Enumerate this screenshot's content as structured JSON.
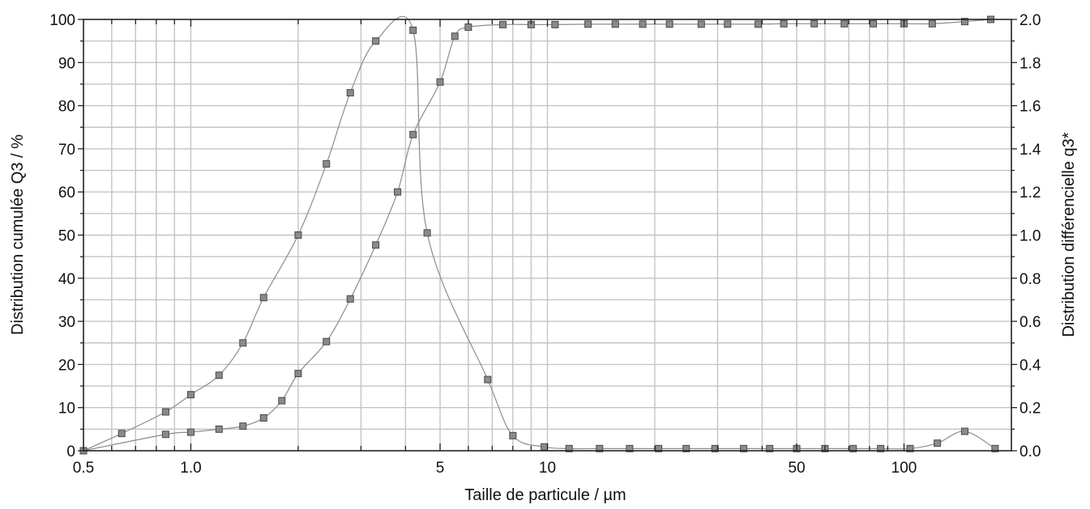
{
  "chart_data": {
    "type": "scatter",
    "title": "",
    "xlabel": "Taille de particule / µm",
    "ylabel": "Distribution cumulée Q3 / %",
    "y2label": "Distribution différencielle q3*",
    "x_scale": "log",
    "xlim": [
      0.5,
      200
    ],
    "ylim": [
      0,
      100
    ],
    "y2lim": [
      0,
      2.0
    ],
    "x_ticks": [
      0.5,
      1.0,
      5,
      10,
      50,
      100
    ],
    "x_tick_labels": [
      "0.5",
      "1.0",
      "5",
      "10",
      "50",
      "100"
    ],
    "y_ticks": [
      0,
      10,
      20,
      30,
      40,
      50,
      60,
      70,
      80,
      90,
      100
    ],
    "y_tick_labels": [
      "0",
      "10",
      "20",
      "30",
      "40",
      "50",
      "60",
      "70",
      "80",
      "90",
      "100"
    ],
    "y2_ticks": [
      0,
      0.2,
      0.4,
      0.6,
      0.8,
      1.0,
      1.2,
      1.4,
      1.6,
      1.8,
      2.0
    ],
    "y2_tick_labels": [
      "0.0",
      "0.2",
      "0.4",
      "0.6",
      "0.8",
      "1.0",
      "1.2",
      "1.4",
      "1.6",
      "1.8",
      "2.0"
    ],
    "grid": true,
    "legend": "none",
    "colors": {
      "curve": "#8c8c8c",
      "marker_fill": "#8a8a8a",
      "marker_stroke": "#4a4a4a",
      "grid": "#c4c4c4",
      "axis": "#222222"
    },
    "series": [
      {
        "axis": "right",
        "x": [
          0.5,
          0.64,
          0.85,
          1.0,
          1.2,
          1.4,
          1.6,
          2.0,
          2.4,
          2.8,
          3.3,
          4.2,
          4.6,
          6.8,
          8.0,
          9.8,
          11.5,
          14.0,
          17.0,
          20.5,
          24.5,
          29.5,
          35.5,
          42.0,
          50.0,
          60.0,
          72.0,
          86.0,
          104.0,
          124.0,
          148.0,
          180.0
        ],
        "y": [
          0.0,
          0.08,
          0.18,
          0.26,
          0.35,
          0.5,
          0.71,
          1.0,
          1.33,
          1.66,
          1.9,
          1.95,
          1.01,
          0.33,
          0.07,
          0.018,
          0.01,
          0.01,
          0.01,
          0.01,
          0.01,
          0.01,
          0.01,
          0.01,
          0.01,
          0.01,
          0.01,
          0.01,
          0.01,
          0.035,
          0.09,
          0.01
        ]
      },
      {
        "axis": "left",
        "x": [
          0.5,
          0.85,
          1.0,
          1.2,
          1.4,
          1.6,
          1.8,
          2.0,
          2.4,
          2.8,
          3.3,
          3.8,
          4.2,
          5.0,
          5.5,
          6.0,
          7.5,
          9.0,
          10.5,
          13.0,
          15.5,
          18.5,
          22.0,
          27.0,
          32.0,
          39.0,
          46.0,
          56.0,
          68.0,
          82.0,
          100.0,
          120.0,
          148.0,
          175.0
        ],
        "y": [
          0.0,
          3.8,
          4.3,
          5.0,
          5.7,
          7.6,
          11.6,
          17.9,
          25.3,
          35.2,
          47.7,
          60.0,
          73.3,
          85.5,
          96.1,
          98.2,
          98.8,
          98.8,
          98.8,
          98.9,
          98.9,
          98.9,
          98.9,
          98.9,
          98.9,
          98.9,
          99.0,
          99.0,
          99.0,
          99.0,
          99.0,
          99.0,
          99.5,
          100.0
        ]
      }
    ]
  }
}
